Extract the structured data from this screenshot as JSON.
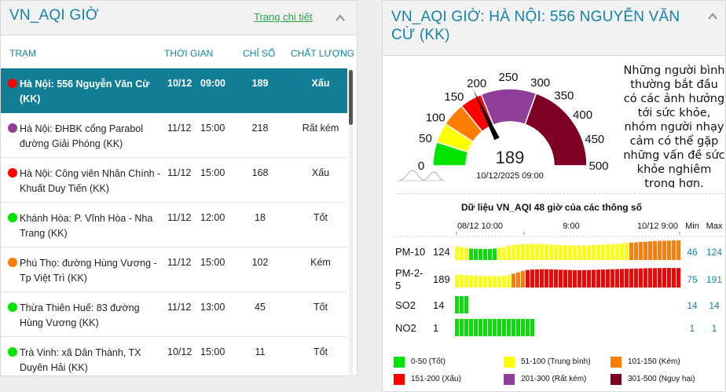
{
  "left": {
    "title": "VN_AQI GIỜ",
    "detail_link": "Trang chi tiết",
    "headers": {
      "station": "TRẠM",
      "time": "THỜI GIAN",
      "index": "CHỈ SỐ",
      "quality": "CHẤT LƯỢNG"
    },
    "rows": [
      {
        "name": "Hà Nội: 556 Nguyễn Văn Cừ (KK)",
        "date": "10/12",
        "time": "09:00",
        "value": "189",
        "quality": "Xấu",
        "color": "#ff0000",
        "active": true
      },
      {
        "name": "Hà Nội: ĐHBK cổng Parabol đường Giải Phóng (KK)",
        "date": "11/12",
        "time": "15:00",
        "value": "218",
        "quality": "Rất kém",
        "color": "#8f3f97",
        "active": false
      },
      {
        "name": "Hà Nội: Công viên Nhân Chính - Khuất Duy Tiến (KK)",
        "date": "11/12",
        "time": "15:00",
        "value": "168",
        "quality": "Xấu",
        "color": "#ff0000",
        "active": false
      },
      {
        "name": "Khánh Hòa: P. Vĩnh Hòa - Nha Trang (KK)",
        "date": "11/12",
        "time": "12:00",
        "value": "18",
        "quality": "Tốt",
        "color": "#00e400",
        "active": false
      },
      {
        "name": "Phú Thọ: đường Hùng Vương - Tp Việt Trì (KK)",
        "date": "11/12",
        "time": "15:00",
        "value": "102",
        "quality": "Kém",
        "color": "#ff7e00",
        "active": false
      },
      {
        "name": "Thừa Thiên Huế: 83 đường Hùng Vương (KK)",
        "date": "11/12",
        "time": "13:00",
        "value": "45",
        "quality": "Tốt",
        "color": "#00e400",
        "active": false
      },
      {
        "name": "Trà Vinh: xã Dân Thành, TX Duyên Hải (KK)",
        "date": "10/12",
        "time": "15:00",
        "value": "11",
        "quality": "Tốt",
        "color": "#00e400",
        "active": false
      }
    ]
  },
  "right": {
    "title": "VN_AQI GIỜ: HÀ NỘI: 556 NGUYỄN VĂN CỪ (KK)",
    "gauge": {
      "value": 189,
      "value_label": "189",
      "timestamp": "10/12/2025 09:00",
      "ticks": [
        "0",
        "50",
        "100",
        "150",
        "200",
        "250",
        "300",
        "350",
        "400",
        "450",
        "500"
      ]
    },
    "advice": "Những người bình thường bắt đầu có các ảnh hưởng tới sức khỏe, nhóm người nhạy cảm có thể gặp những vấn đề sức khỏe nghiêm trọng hơn.",
    "history": {
      "title": "Dữ liệu VN_AQI 48 giờ của các thông số",
      "time_labels": [
        "08/12 10:00",
        "9:00",
        "10/12 9:00"
      ],
      "min_label": "Min",
      "max_label": "Max",
      "params": [
        {
          "name": "PM-10",
          "current": "124",
          "min": "46",
          "max": "124",
          "values": [
            70,
            64,
            56,
            50,
            48,
            48,
            46,
            47,
            50,
            58,
            64,
            76,
            84,
            88,
            90,
            92,
            92,
            91,
            90,
            88,
            86,
            84,
            82,
            80,
            79,
            78,
            78,
            79,
            80,
            82,
            84,
            86,
            88,
            90,
            92,
            96,
            100,
            104,
            106,
            110,
            112,
            116,
            118,
            120,
            121,
            122,
            124,
            124
          ]
        },
        {
          "name": "PM-2-5",
          "current": "189",
          "min": "75",
          "max": "191",
          "values": [
            96,
            94,
            90,
            86,
            82,
            80,
            78,
            76,
            75,
            77,
            82,
            90,
            110,
            128,
            150,
            162,
            168,
            170,
            172,
            172,
            170,
            168,
            166,
            164,
            162,
            160,
            160,
            161,
            162,
            164,
            166,
            168,
            170,
            172,
            174,
            176,
            178,
            180,
            182,
            184,
            186,
            187,
            188,
            189,
            190,
            191,
            190,
            189
          ]
        },
        {
          "name": "SO2",
          "current": "14",
          "min": "14",
          "max": "14",
          "values": [
            14,
            14,
            14
          ]
        },
        {
          "name": "NO2",
          "current": "1",
          "min": "1",
          "max": "1",
          "values": [
            1,
            1,
            1,
            1,
            1,
            1,
            1,
            1,
            1,
            1,
            1,
            1,
            1,
            1,
            1,
            1,
            1
          ]
        }
      ]
    },
    "legend": [
      {
        "label": "0-50 (Tốt)",
        "color": "#00e400"
      },
      {
        "label": "51-100 (Trung bình)",
        "color": "#ffff00"
      },
      {
        "label": "101-150 (Kém)",
        "color": "#ff7e00"
      },
      {
        "label": "151-200 (Xấu)",
        "color": "#ff0000"
      },
      {
        "label": "201-300 (Rất kém)",
        "color": "#8f3f97"
      },
      {
        "label": "301-500 (Nguy hại)",
        "color": "#7e0023"
      }
    ]
  }
}
